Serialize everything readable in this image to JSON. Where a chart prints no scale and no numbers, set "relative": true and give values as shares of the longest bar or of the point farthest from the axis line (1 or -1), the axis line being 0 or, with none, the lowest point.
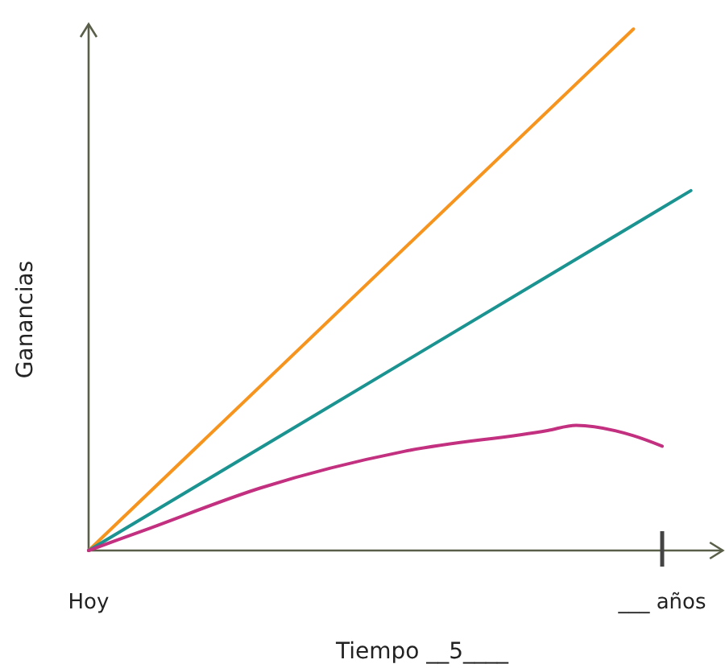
{
  "chart_data": {
    "type": "line",
    "relative": true,
    "xlabel": "Tiempo __5____",
    "ylabel": "Ganancias",
    "categories": [
      "Hoy",
      null,
      null,
      null,
      null,
      null,
      null,
      null,
      null,
      null,
      null,
      null,
      null,
      null,
      null,
      null,
      null,
      null,
      null,
      null,
      "___ años",
      null,
      null
    ],
    "grid": false,
    "marker": "none",
    "line_style": "solid",
    "series": [
      {
        "color": "#f7941d",
        "values": [
          0,
          null,
          null,
          null,
          null,
          null,
          null,
          null,
          null,
          null,
          null,
          null,
          null,
          null,
          null,
          null,
          null,
          null,
          null,
          1,
          null,
          null,
          null
        ]
      },
      {
        "color": "#1a9391",
        "values": [
          0,
          null,
          null,
          null,
          null,
          null,
          null,
          null,
          null,
          null,
          null,
          null,
          null,
          null,
          null,
          null,
          null,
          null,
          null,
          null,
          null,
          0.69,
          null
        ]
      },
      {
        "color": "#c2307f",
        "values": [
          0,
          null,
          0.04,
          null,
          null,
          null,
          0.12,
          null,
          null,
          null,
          null,
          0.19,
          null,
          null,
          null,
          null,
          0.23,
          0.24,
          null,
          0.22,
          0.2,
          null,
          null
        ]
      }
    ]
  }
}
